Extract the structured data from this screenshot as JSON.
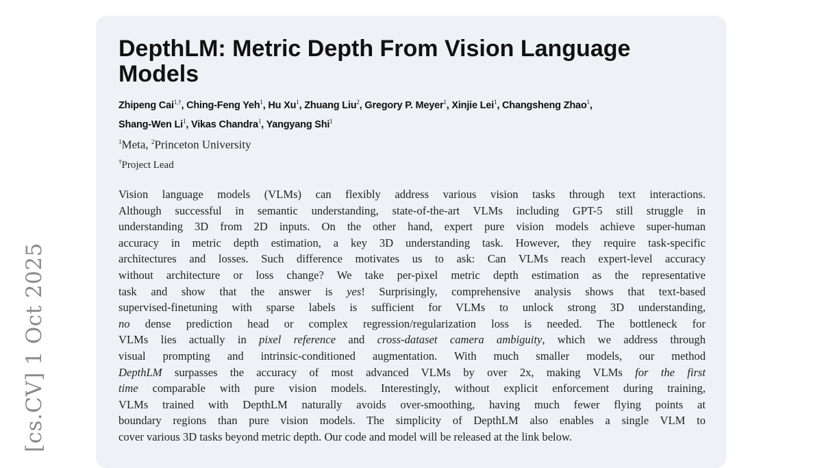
{
  "stamp": "[cs.CV]  1 Oct 2025",
  "title": "DepthLM: Metric Depth From Vision Language Models",
  "authors": [
    {
      "name": "Zhipeng Cai",
      "sup": "1,†"
    },
    {
      "name": "Ching-Feng Yeh",
      "sup": "1"
    },
    {
      "name": "Hu Xu",
      "sup": "1"
    },
    {
      "name": "Zhuang Liu",
      "sup": "2"
    },
    {
      "name": "Gregory P. Meyer",
      "sup": "1"
    },
    {
      "name": "Xinjie Lei",
      "sup": "1"
    },
    {
      "name": "Changsheng Zhao",
      "sup": "1"
    },
    {
      "name": "Shang-Wen Li",
      "sup": "1"
    },
    {
      "name": "Vikas Chandra",
      "sup": "1"
    },
    {
      "name": "Yangyang Shi",
      "sup": "1"
    }
  ],
  "affiliations": {
    "sup1": "1",
    "aff1": "Meta,",
    "sup2": "2",
    "aff2": "Princeton University",
    "note_sup": "†",
    "note": "Project Lead"
  },
  "abstract": {
    "lines": [
      [
        {
          "t": "Vision language models (VLMs) can flexibly address various vision tasks through text interactions."
        }
      ],
      [
        {
          "t": "Although successful in semantic understanding, state-of-the-art VLMs including GPT-5 still struggle in"
        }
      ],
      [
        {
          "t": "understanding 3D from 2D inputs. On the other hand, expert pure vision models achieve super-human"
        }
      ],
      [
        {
          "t": "accuracy in metric depth estimation, a key 3D understanding task. However, they require task-specific"
        }
      ],
      [
        {
          "t": "architectures and losses. Such difference motivates us to ask: Can VLMs reach expert-level accuracy"
        }
      ],
      [
        {
          "t": "without architecture or loss change? We take per-pixel metric depth estimation as the representative"
        }
      ],
      [
        {
          "t": "task and show that the answer is "
        },
        {
          "t": "yes",
          "i": true
        },
        {
          "t": "! Surprisingly, comprehensive analysis shows that text-based"
        }
      ],
      [
        {
          "t": "supervised-finetuning with sparse labels is sufficient for VLMs to unlock strong 3D understanding,"
        }
      ],
      [
        {
          "t": "no",
          "i": true
        },
        {
          "t": " dense prediction head or complex regression/regularization loss is needed. The bottleneck for"
        }
      ],
      [
        {
          "t": "VLMs lies actually in "
        },
        {
          "t": "pixel reference",
          "i": true
        },
        {
          "t": " and "
        },
        {
          "t": "cross-dataset camera ambiguity",
          "i": true
        },
        {
          "t": ", which we address through"
        }
      ],
      [
        {
          "t": "visual prompting and intrinsic-conditioned augmentation. With much smaller models, our method"
        }
      ],
      [
        {
          "t": "DepthLM",
          "i": true
        },
        {
          "t": " surpasses the accuracy of most advanced VLMs by over 2x, making VLMs "
        },
        {
          "t": "for the first",
          "i": true
        }
      ],
      [
        {
          "t": "time",
          "i": true
        },
        {
          "t": " comparable with pure vision models. Interestingly, without explicit enforcement during training,"
        }
      ],
      [
        {
          "t": "VLMs trained with DepthLM naturally avoids over-smoothing, having much fewer flying points at"
        }
      ],
      [
        {
          "t": "boundary regions than pure vision models. The simplicity of DepthLM also enables a single VLM to"
        }
      ],
      [
        {
          "t": "cover various 3D tasks beyond metric depth. Our code and model will be released at the link below."
        }
      ]
    ]
  }
}
